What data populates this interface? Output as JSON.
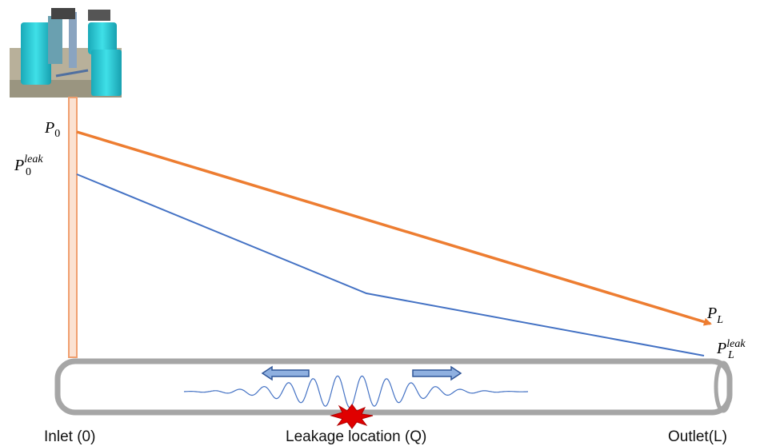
{
  "labels": {
    "p0": {
      "base": "P",
      "sub": "0"
    },
    "p0_leak": {
      "base": "P",
      "sub": "0",
      "sup": "leak"
    },
    "pl": {
      "base": "P",
      "sub": "L"
    },
    "pl_leak": {
      "base": "P",
      "sub": "L",
      "sup": "leak"
    }
  },
  "axis_labels": {
    "inlet": "Inlet (0)",
    "leak": "Leakage location (Q)",
    "outlet": "Outlet(L)"
  }
}
